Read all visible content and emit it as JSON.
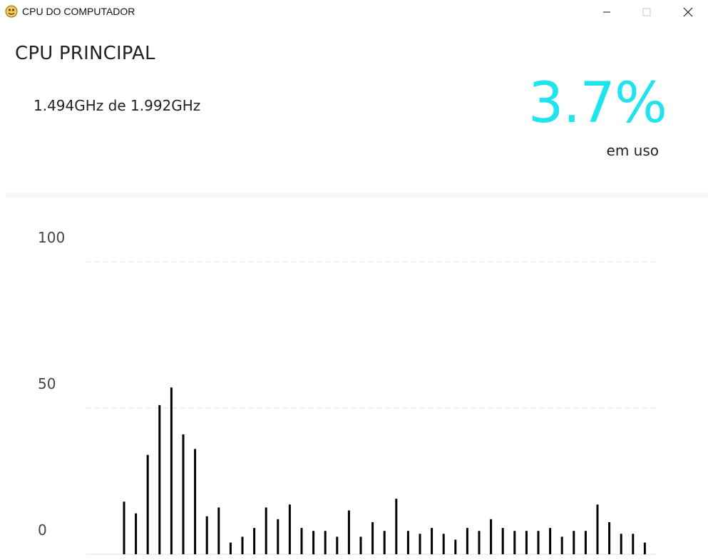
{
  "window": {
    "title": "CPU DO COMPUTADOR",
    "app_icon": "python-icon",
    "controls": [
      "minimize-icon",
      "maximize-icon",
      "close-icon"
    ]
  },
  "header": {
    "title": "CPU PRINCIPAL",
    "frequency": "1.494GHz de 1.992GHz",
    "usage_value": "3.7%",
    "usage_label": "em uso",
    "usage_color": "#1fe3ef"
  },
  "chart_data": {
    "type": "bar",
    "title": "",
    "xlabel": "",
    "ylabel": "",
    "ylim": [
      0,
      100
    ],
    "yticks": [
      0,
      50,
      100
    ],
    "grid": true,
    "bar_color": "#000000",
    "grid_color": "#e6e6e6",
    "values": [
      18,
      14,
      34,
      51,
      57,
      41,
      36,
      13,
      16,
      4,
      6,
      9,
      16,
      12,
      17,
      9,
      8,
      8,
      6,
      15,
      6,
      11,
      8,
      19,
      8,
      7,
      9,
      7,
      5,
      9,
      8,
      12,
      9,
      8,
      8,
      8,
      9,
      6,
      8,
      8,
      17,
      11,
      7,
      7,
      4
    ]
  }
}
